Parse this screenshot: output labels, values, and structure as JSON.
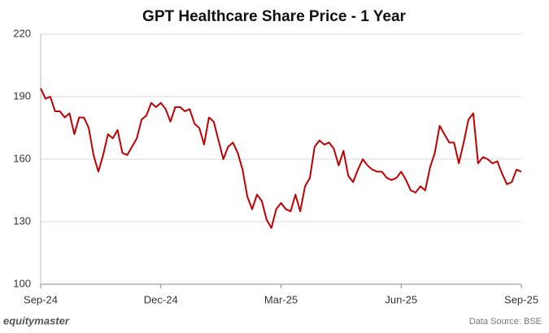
{
  "chart_data": {
    "type": "line",
    "title": "GPT Healthcare Share Price - 1 Year",
    "categories": [
      "Sep-24",
      null,
      null,
      null,
      null,
      null,
      null,
      null,
      null,
      null,
      null,
      null,
      null,
      null,
      null,
      null,
      null,
      null,
      null,
      null,
      null,
      null,
      null,
      null,
      null,
      "Dec-24",
      null,
      null,
      null,
      null,
      null,
      null,
      null,
      null,
      null,
      null,
      null,
      null,
      null,
      null,
      null,
      null,
      null,
      null,
      null,
      null,
      null,
      null,
      null,
      null,
      "Mar-25",
      null,
      null,
      null,
      null,
      null,
      null,
      null,
      null,
      null,
      null,
      null,
      null,
      null,
      null,
      null,
      null,
      null,
      null,
      null,
      null,
      null,
      null,
      null,
      null,
      "Jun-25",
      null,
      null,
      null,
      null,
      null,
      null,
      null,
      null,
      null,
      null,
      null,
      null,
      null,
      null,
      null,
      null,
      null,
      null,
      null,
      null,
      null,
      null,
      null,
      null,
      "Sep-25"
    ],
    "values": [
      194,
      189,
      190,
      183,
      183,
      180,
      182,
      172,
      180,
      180,
      175,
      162,
      154,
      162,
      172,
      170,
      174,
      163,
      162,
      166,
      170,
      179,
      181,
      187,
      185,
      187,
      184,
      178,
      185,
      185,
      183,
      184,
      177,
      175,
      167,
      180,
      178,
      169,
      160,
      166,
      168,
      163,
      155,
      142,
      136,
      143,
      140,
      131,
      127,
      136,
      139,
      136,
      135,
      143,
      135,
      147,
      151,
      166,
      169,
      167,
      168,
      165,
      157,
      164,
      152,
      149,
      155,
      160,
      157,
      155,
      154,
      154,
      151,
      150,
      151,
      154,
      150,
      145,
      144,
      147,
      145,
      156,
      163,
      176,
      172,
      168,
      168,
      158,
      168,
      179,
      182,
      158,
      161,
      160,
      158,
      159,
      153,
      148,
      149,
      155,
      154
    ],
    "color": "#c00000",
    "ylim": [
      100,
      220
    ],
    "yticks": [
      100,
      130,
      160,
      190,
      220
    ],
    "grid": true,
    "brand": "equitymaster",
    "source": "Data Source: BSE"
  }
}
